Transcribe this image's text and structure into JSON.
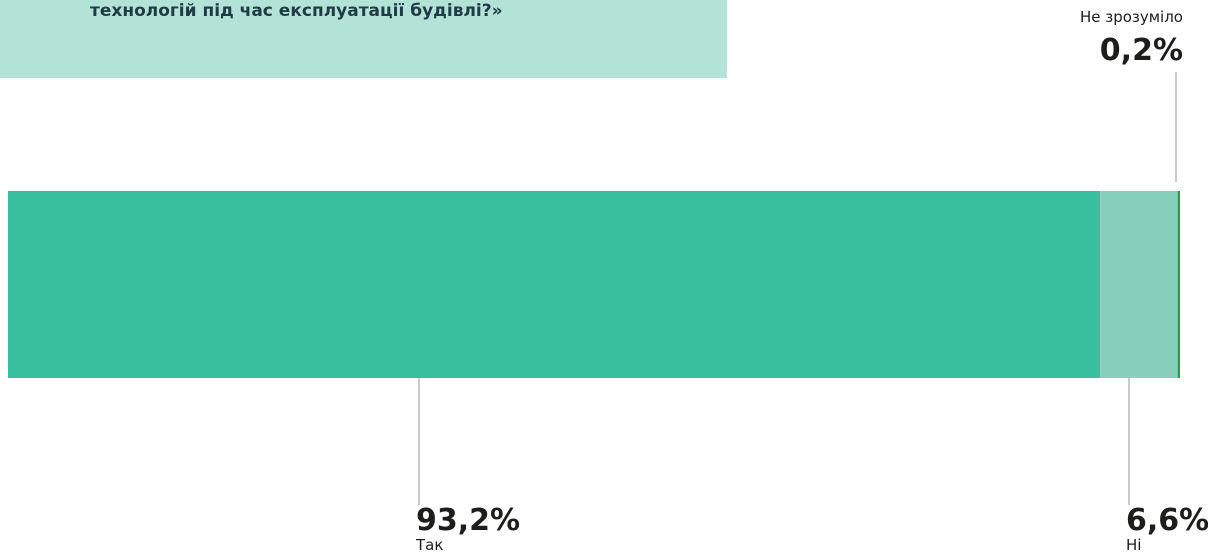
{
  "chart_data": {
    "type": "stacked_bar",
    "title": "технологій під час експлуатації будівлі?»",
    "categories": [
      "Так",
      "Ні",
      "Не зрозуміло"
    ],
    "values": [
      93.2,
      6.6,
      0.2
    ],
    "value_labels": [
      "93,2%",
      "6,6%",
      "0,2%"
    ],
    "colors": [
      "#38bf9e",
      "#86cfbc",
      "#1aa34a"
    ],
    "xlim": [
      0,
      100
    ]
  }
}
